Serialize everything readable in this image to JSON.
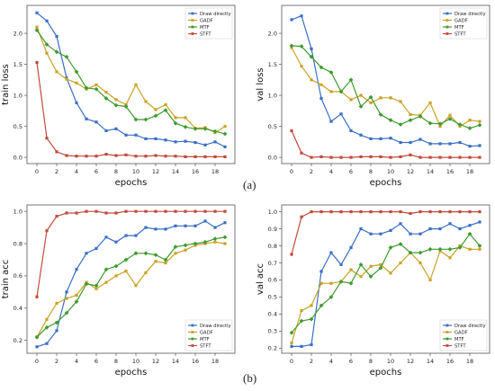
{
  "panel_labels": [
    "(a)",
    "(b)"
  ],
  "colors": {
    "Draw directly": "#3a6fc4",
    "GADF": "#c9a227",
    "MTF": "#3f9a2f",
    "STFT": "#c24a3b"
  },
  "chart_data": [
    {
      "type": "line",
      "xlabel": "epochs",
      "ylabel": "train loss",
      "xlim": [
        -1,
        20
      ],
      "ylim": [
        -0.1,
        2.45
      ],
      "xticks": [
        0,
        2,
        4,
        6,
        8,
        10,
        12,
        14,
        16,
        18
      ],
      "yticks": [
        0.0,
        0.5,
        1.0,
        1.5,
        2.0
      ],
      "ytick_labels": [
        "0.0",
        "0.5",
        "1.0",
        "1.5",
        "2.0"
      ],
      "grid": false,
      "legend": "top-right",
      "x": [
        0,
        1,
        2,
        3,
        4,
        5,
        6,
        7,
        8,
        9,
        10,
        11,
        12,
        13,
        14,
        15,
        16,
        17,
        18,
        19
      ],
      "series": [
        {
          "name": "Draw directly",
          "values": [
            2.33,
            2.2,
            1.95,
            1.28,
            0.88,
            0.62,
            0.57,
            0.43,
            0.46,
            0.36,
            0.36,
            0.3,
            0.3,
            0.28,
            0.25,
            0.26,
            0.24,
            0.2,
            0.25,
            0.17
          ]
        },
        {
          "name": "GADF",
          "values": [
            2.1,
            1.68,
            1.38,
            1.26,
            1.2,
            1.1,
            1.17,
            1.05,
            0.93,
            0.85,
            1.17,
            0.9,
            0.77,
            0.85,
            0.64,
            0.64,
            0.47,
            0.48,
            0.4,
            0.5
          ]
        },
        {
          "name": "MTF",
          "values": [
            2.05,
            1.82,
            1.7,
            1.62,
            1.38,
            1.12,
            1.1,
            0.95,
            0.84,
            0.82,
            0.61,
            0.61,
            0.67,
            0.76,
            0.55,
            0.49,
            0.46,
            0.46,
            0.42,
            0.38
          ]
        },
        {
          "name": "STFT",
          "values": [
            1.53,
            0.31,
            0.09,
            0.03,
            0.02,
            0.02,
            0.02,
            0.05,
            0.03,
            0.04,
            0.02,
            0.02,
            0.03,
            0.02,
            0.02,
            0.01,
            0.01,
            0.01,
            0.01,
            0.01
          ]
        }
      ]
    },
    {
      "type": "line",
      "xlabel": "epochs",
      "ylabel": "val loss",
      "xlim": [
        -1,
        20
      ],
      "ylim": [
        -0.1,
        2.45
      ],
      "xticks": [
        0,
        2,
        4,
        6,
        8,
        10,
        12,
        14,
        16,
        18
      ],
      "yticks": [
        0.0,
        0.5,
        1.0,
        1.5,
        2.0
      ],
      "ytick_labels": [
        "0.0",
        "0.5",
        "1.0",
        "1.5",
        "2.0"
      ],
      "grid": false,
      "legend": "top-right",
      "x": [
        0,
        1,
        2,
        3,
        4,
        5,
        6,
        7,
        8,
        9,
        10,
        11,
        12,
        13,
        14,
        15,
        16,
        17,
        18,
        19
      ],
      "series": [
        {
          "name": "Draw directly",
          "values": [
            2.22,
            2.28,
            1.75,
            0.95,
            0.58,
            0.7,
            0.43,
            0.36,
            0.3,
            0.3,
            0.31,
            0.24,
            0.24,
            0.29,
            0.22,
            0.22,
            0.22,
            0.24,
            0.18,
            0.19
          ]
        },
        {
          "name": "GADF",
          "values": [
            1.77,
            1.47,
            1.25,
            1.17,
            1.06,
            1.06,
            0.93,
            1.0,
            0.88,
            0.96,
            0.96,
            0.9,
            0.69,
            0.68,
            0.88,
            0.5,
            0.68,
            0.5,
            0.6,
            0.58
          ]
        },
        {
          "name": "MTF",
          "values": [
            1.8,
            1.79,
            1.62,
            1.45,
            1.37,
            1.06,
            1.25,
            0.82,
            0.97,
            0.69,
            0.6,
            0.53,
            0.6,
            0.66,
            0.55,
            0.54,
            0.62,
            0.53,
            0.47,
            0.52
          ]
        },
        {
          "name": "STFT",
          "values": [
            0.43,
            0.07,
            0.0,
            0.01,
            0.0,
            0.0,
            0.0,
            0.01,
            0.01,
            0.01,
            0.0,
            0.01,
            0.04,
            0.0,
            0.0,
            0.0,
            0.0,
            0.0,
            0.0,
            0.0
          ]
        }
      ]
    },
    {
      "type": "line",
      "xlabel": "epochs",
      "ylabel": "train acc",
      "xlim": [
        -1,
        20
      ],
      "ylim": [
        0.12,
        1.04
      ],
      "xticks": [
        0,
        2,
        4,
        6,
        8,
        10,
        12,
        14,
        16,
        18
      ],
      "yticks": [
        0.2,
        0.4,
        0.6,
        0.8,
        1.0
      ],
      "ytick_labels": [
        "0.2",
        "0.4",
        "0.6",
        "0.8",
        "1.0"
      ],
      "grid": false,
      "legend": "bottom-right",
      "x": [
        0,
        1,
        2,
        3,
        4,
        5,
        6,
        7,
        8,
        9,
        10,
        11,
        12,
        13,
        14,
        15,
        16,
        17,
        18,
        19
      ],
      "series": [
        {
          "name": "Draw directly",
          "values": [
            0.16,
            0.18,
            0.26,
            0.5,
            0.64,
            0.74,
            0.77,
            0.84,
            0.81,
            0.85,
            0.85,
            0.9,
            0.89,
            0.89,
            0.91,
            0.91,
            0.91,
            0.94,
            0.9,
            0.93
          ]
        },
        {
          "name": "GADF",
          "values": [
            0.22,
            0.33,
            0.43,
            0.46,
            0.48,
            0.56,
            0.52,
            0.56,
            0.6,
            0.63,
            0.54,
            0.62,
            0.69,
            0.68,
            0.74,
            0.76,
            0.79,
            0.8,
            0.81,
            0.8
          ]
        },
        {
          "name": "MTF",
          "values": [
            0.22,
            0.28,
            0.31,
            0.37,
            0.44,
            0.55,
            0.54,
            0.64,
            0.66,
            0.7,
            0.74,
            0.74,
            0.73,
            0.7,
            0.78,
            0.79,
            0.8,
            0.81,
            0.83,
            0.84
          ]
        },
        {
          "name": "STFT",
          "values": [
            0.47,
            0.88,
            0.97,
            0.99,
            0.99,
            1.0,
            1.0,
            0.99,
            0.99,
            1.0,
            1.0,
            1.0,
            1.0,
            1.0,
            1.0,
            1.0,
            1.0,
            1.0,
            1.0,
            1.0
          ]
        }
      ]
    },
    {
      "type": "line",
      "xlabel": "epochs",
      "ylabel": "val acc",
      "xlim": [
        -1,
        20
      ],
      "ylim": [
        0.17,
        1.04
      ],
      "xticks": [
        0,
        2,
        4,
        6,
        8,
        10,
        12,
        14,
        16,
        18
      ],
      "yticks": [
        0.2,
        0.3,
        0.4,
        0.5,
        0.6,
        0.7,
        0.8,
        0.9,
        1.0
      ],
      "ytick_labels": [
        "0.2",
        "0.3",
        "0.4",
        "0.5",
        "0.6",
        "0.7",
        "0.8",
        "0.9",
        "1.0"
      ],
      "grid": false,
      "legend": "bottom-right",
      "x": [
        0,
        1,
        2,
        3,
        4,
        5,
        6,
        7,
        8,
        9,
        10,
        11,
        12,
        13,
        14,
        15,
        16,
        17,
        18,
        19
      ],
      "series": [
        {
          "name": "Draw directly",
          "values": [
            0.21,
            0.21,
            0.22,
            0.65,
            0.76,
            0.69,
            0.79,
            0.9,
            0.87,
            0.87,
            0.89,
            0.93,
            0.87,
            0.87,
            0.9,
            0.9,
            0.93,
            0.9,
            0.92,
            0.94
          ]
        },
        {
          "name": "GADF",
          "values": [
            0.23,
            0.42,
            0.45,
            0.58,
            0.58,
            0.59,
            0.66,
            0.62,
            0.68,
            0.69,
            0.64,
            0.7,
            0.76,
            0.7,
            0.6,
            0.77,
            0.73,
            0.8,
            0.78,
            0.78
          ]
        },
        {
          "name": "MTF",
          "values": [
            0.29,
            0.36,
            0.37,
            0.45,
            0.5,
            0.59,
            0.58,
            0.69,
            0.62,
            0.67,
            0.79,
            0.81,
            0.76,
            0.76,
            0.78,
            0.78,
            0.78,
            0.79,
            0.87,
            0.8
          ]
        },
        {
          "name": "STFT",
          "values": [
            0.75,
            0.97,
            1.0,
            1.0,
            1.0,
            1.0,
            1.0,
            1.0,
            1.0,
            1.0,
            1.0,
            1.0,
            0.99,
            1.0,
            1.0,
            1.0,
            1.0,
            1.0,
            1.0,
            1.0
          ]
        }
      ]
    }
  ]
}
